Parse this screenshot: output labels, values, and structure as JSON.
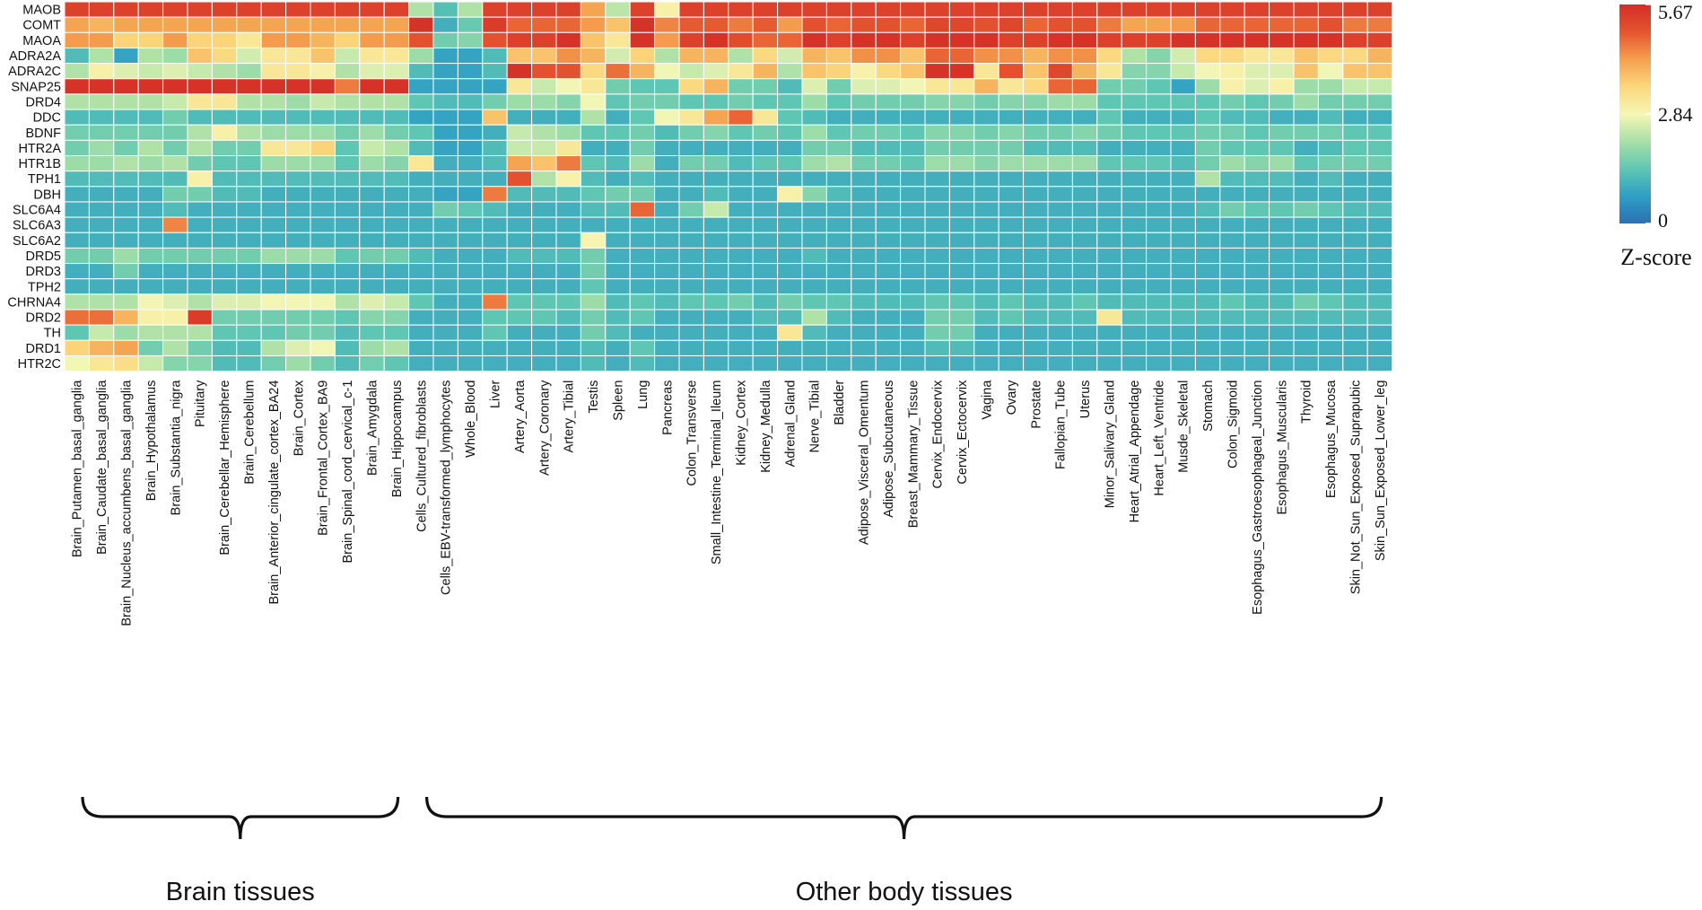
{
  "chart_data": {
    "type": "heatmap",
    "rows": [
      "MAOB",
      "COMT",
      "MAOA",
      "ADRA2A",
      "ADRA2C",
      "SNAP25",
      "DRD4",
      "DDC",
      "BDNF",
      "HTR2A",
      "HTR1B",
      "TPH1",
      "DBH",
      "SLC6A4",
      "SLC6A3",
      "SLC6A2",
      "DRD5",
      "DRD3",
      "TPH2",
      "CHRNA4",
      "DRD2",
      "TH",
      "DRD1",
      "HTR2C"
    ],
    "columns": [
      "Brain_Putamen_basal_ganglia",
      "Brain_Caudate_basal_ganglia",
      "Brain_Nucleus_accumbens_basal_ganglia",
      "Brain_Hypothalamus",
      "Brain_Substantia_nigra",
      "Pituitary",
      "Brain_Cerebellar_Hemisphere",
      "Brain_Cerebellum",
      "Brain_Anterior_cingulate_cortex_BA24",
      "Brain_Cortex",
      "Brain_Frontal_Cortex_BA9",
      "Brain_Spinal_cord_cervical_c-1",
      "Brain_Amygdala",
      "Brain_Hippocampus",
      "Cells_Cultured_fibroblasts",
      "Cells_EBV-transformed_lymphocytes",
      "Whole_Blood",
      "Liver",
      "Artery_Aorta",
      "Artery_Coronary",
      "Artery_Tibial",
      "Testis",
      "Spleen",
      "Lung",
      "Pancreas",
      "Colon_Transverse",
      "Small_Intestine_Terminal_Ileum",
      "Kidney_Cortex",
      "Kidney_Medulla",
      "Adrenal_Gland",
      "Nerve_Tibial",
      "Bladder",
      "Adipose_Visceral_Omentum",
      "Adipose_Subcutaneous",
      "Breast_Mammary_Tissue",
      "Cervix_Endocervix",
      "Cervix_Ectocervix",
      "Vagina",
      "Ovary",
      "Prostate",
      "Fallopian_Tube",
      "Uterus",
      "Minor_Salivary_Gland",
      "Heart_Atrial_Appendage",
      "Heart_Left_Ventride",
      "Musde_Skeletal",
      "Stomach",
      "Colon_Sigmoid",
      "Esophagus_Gastroesophageal_Junction",
      "Esophagus_Muscularis",
      "Thyroid",
      "Esophagus_Mucosa",
      "Skin_Not_Sun_Exposed_Suprapubic",
      "Skin_Sun_Exposed_Lower_leg"
    ],
    "values": [
      [
        5.3,
        5.3,
        5.3,
        5.3,
        5.3,
        5.3,
        5.3,
        5.3,
        5.3,
        5.3,
        5.3,
        5.3,
        5.3,
        5.3,
        2.2,
        1.3,
        2.2,
        5.3,
        5.3,
        5.3,
        5.3,
        4.2,
        2.3,
        5.3,
        3.0,
        5.3,
        5.3,
        5.3,
        5.3,
        5.3,
        5.3,
        5.3,
        5.3,
        5.3,
        5.3,
        5.3,
        5.3,
        5.3,
        5.3,
        5.3,
        5.3,
        5.3,
        5.3,
        5.3,
        5.3,
        5.3,
        5.3,
        5.3,
        5.3,
        5.3,
        5.3,
        5.3,
        5.3,
        5.3
      ],
      [
        4.2,
        4.0,
        4.2,
        4.2,
        4.2,
        4.2,
        4.2,
        4.2,
        4.2,
        4.2,
        4.2,
        4.2,
        4.2,
        4.2,
        5.6,
        1.0,
        1.5,
        5.4,
        4.8,
        4.8,
        4.8,
        4.3,
        3.8,
        5.6,
        4.5,
        4.9,
        4.9,
        4.6,
        4.9,
        4.3,
        5.0,
        4.8,
        5.0,
        5.0,
        4.8,
        5.2,
        5.2,
        5.0,
        5.2,
        4.8,
        5.0,
        5.0,
        4.6,
        4.2,
        4.2,
        4.3,
        4.8,
        4.8,
        4.8,
        4.8,
        4.8,
        5.0,
        4.6,
        4.6
      ],
      [
        4.3,
        4.3,
        3.6,
        3.6,
        4.3,
        3.6,
        3.6,
        3.2,
        4.3,
        4.3,
        4.0,
        3.6,
        4.3,
        4.3,
        5.0,
        1.6,
        1.8,
        5.0,
        5.3,
        5.3,
        5.6,
        3.8,
        3.2,
        5.6,
        4.3,
        5.3,
        5.6,
        5.1,
        4.8,
        4.8,
        5.6,
        5.3,
        5.6,
        5.6,
        5.3,
        5.6,
        5.6,
        5.6,
        5.3,
        5.3,
        5.6,
        5.6,
        5.3,
        5.3,
        5.3,
        5.6,
        5.6,
        5.6,
        5.6,
        5.6,
        5.6,
        5.6,
        5.3,
        5.3
      ],
      [
        1.2,
        2.2,
        0.8,
        2.2,
        2.0,
        3.8,
        3.5,
        2.5,
        3.2,
        3.2,
        3.8,
        2.4,
        3.2,
        3.2,
        2.0,
        0.8,
        0.8,
        1.2,
        3.8,
        3.8,
        4.4,
        4.0,
        2.5,
        3.6,
        2.2,
        4.0,
        4.0,
        2.2,
        3.5,
        2.5,
        4.0,
        3.8,
        4.4,
        4.4,
        3.8,
        4.8,
        4.8,
        4.4,
        4.4,
        4.0,
        4.4,
        4.4,
        3.5,
        2.2,
        1.8,
        2.5,
        3.5,
        3.5,
        3.2,
        3.2,
        3.8,
        3.5,
        3.5,
        4.0
      ],
      [
        2.2,
        3.0,
        2.6,
        2.4,
        2.6,
        2.4,
        2.2,
        2.0,
        3.2,
        3.2,
        3.0,
        2.2,
        2.6,
        2.6,
        1.2,
        0.8,
        0.8,
        1.2,
        5.6,
        5.0,
        5.0,
        3.5,
        4.7,
        4.0,
        2.8,
        2.4,
        2.6,
        3.2,
        4.0,
        2.2,
        3.8,
        3.6,
        3.0,
        3.5,
        3.8,
        5.6,
        5.6,
        3.2,
        5.0,
        3.8,
        5.2,
        4.0,
        3.2,
        1.8,
        1.8,
        2.4,
        2.8,
        3.0,
        2.6,
        2.6,
        3.8,
        2.8,
        3.8,
        3.8
      ],
      [
        5.6,
        5.6,
        5.6,
        5.6,
        5.6,
        5.6,
        5.6,
        5.6,
        5.6,
        5.6,
        5.6,
        4.6,
        5.6,
        5.6,
        0.8,
        0.8,
        0.8,
        0.8,
        3.2,
        2.4,
        2.8,
        3.2,
        1.6,
        1.4,
        1.4,
        3.5,
        4.0,
        1.6,
        1.6,
        1.2,
        2.6,
        1.6,
        2.6,
        2.6,
        2.8,
        3.2,
        3.2,
        4.0,
        3.2,
        3.5,
        4.8,
        4.8,
        1.6,
        1.6,
        1.4,
        0.8,
        2.0,
        3.0,
        2.6,
        3.0,
        2.0,
        2.0,
        2.4,
        2.4
      ],
      [
        2.2,
        2.2,
        2.2,
        2.2,
        2.4,
        3.2,
        3.2,
        2.2,
        2.2,
        2.0,
        2.4,
        2.2,
        2.2,
        2.2,
        1.4,
        1.2,
        1.2,
        1.6,
        2.0,
        2.0,
        1.8,
        2.8,
        1.4,
        1.6,
        1.6,
        1.4,
        1.4,
        1.6,
        1.4,
        1.4,
        2.0,
        1.4,
        1.6,
        1.6,
        1.6,
        1.8,
        1.8,
        1.6,
        1.8,
        1.8,
        2.0,
        2.0,
        1.4,
        1.4,
        1.4,
        1.4,
        1.4,
        1.6,
        1.4,
        1.6,
        2.0,
        1.6,
        1.6,
        1.6
      ],
      [
        1.2,
        1.2,
        1.2,
        1.2,
        1.6,
        1.2,
        1.2,
        1.2,
        1.2,
        1.2,
        1.2,
        1.2,
        1.2,
        1.2,
        0.8,
        0.8,
        0.8,
        3.8,
        1.0,
        1.0,
        1.0,
        2.2,
        1.0,
        1.4,
        2.8,
        3.2,
        4.2,
        4.8,
        3.2,
        1.4,
        1.2,
        1.0,
        1.0,
        1.0,
        1.0,
        1.0,
        1.0,
        1.0,
        1.0,
        1.0,
        1.0,
        1.0,
        1.4,
        1.0,
        1.0,
        1.0,
        1.4,
        1.2,
        1.2,
        1.0,
        1.0,
        1.2,
        1.0,
        1.0
      ],
      [
        1.6,
        1.6,
        1.6,
        1.6,
        1.6,
        2.2,
        3.0,
        2.2,
        2.0,
        2.0,
        2.0,
        1.6,
        2.0,
        1.6,
        1.4,
        0.8,
        0.8,
        1.0,
        2.4,
        2.2,
        2.0,
        1.4,
        1.4,
        1.6,
        1.2,
        1.6,
        1.8,
        1.4,
        1.6,
        1.4,
        2.0,
        1.4,
        1.6,
        1.6,
        1.4,
        1.8,
        1.8,
        1.6,
        1.8,
        1.6,
        1.6,
        1.8,
        1.6,
        1.4,
        1.4,
        1.4,
        1.6,
        1.6,
        1.4,
        1.6,
        1.6,
        1.6,
        1.4,
        1.4
      ],
      [
        1.6,
        2.0,
        1.6,
        2.2,
        1.6,
        2.2,
        1.6,
        1.6,
        3.2,
        3.2,
        3.6,
        1.4,
        2.4,
        2.2,
        1.2,
        0.8,
        0.8,
        1.2,
        2.4,
        2.4,
        3.2,
        1.0,
        1.0,
        1.6,
        1.0,
        1.0,
        1.0,
        1.0,
        1.0,
        1.0,
        1.6,
        1.6,
        1.2,
        1.2,
        1.2,
        1.6,
        1.6,
        1.6,
        1.6,
        1.2,
        1.2,
        1.2,
        1.0,
        1.0,
        1.0,
        1.0,
        1.6,
        1.4,
        1.4,
        1.4,
        1.0,
        1.2,
        1.4,
        1.4
      ],
      [
        2.0,
        2.0,
        2.2,
        2.0,
        2.2,
        1.6,
        1.4,
        1.4,
        2.0,
        2.0,
        2.0,
        1.4,
        2.0,
        1.8,
        3.2,
        1.0,
        1.0,
        1.2,
        4.2,
        3.8,
        4.6,
        1.4,
        1.2,
        2.0,
        1.0,
        1.6,
        1.6,
        1.2,
        1.4,
        1.4,
        2.0,
        2.2,
        1.6,
        1.6,
        1.4,
        2.0,
        2.0,
        1.8,
        2.0,
        2.0,
        2.0,
        2.0,
        1.4,
        1.4,
        1.4,
        1.2,
        1.6,
        2.0,
        1.8,
        2.0,
        1.4,
        1.6,
        1.6,
        1.6
      ],
      [
        1.2,
        1.2,
        1.2,
        1.2,
        1.2,
        3.0,
        1.2,
        1.2,
        1.2,
        1.2,
        1.2,
        1.2,
        1.2,
        1.2,
        1.0,
        1.0,
        1.0,
        1.0,
        5.0,
        2.2,
        3.0,
        1.2,
        1.0,
        1.2,
        1.0,
        1.0,
        1.0,
        1.0,
        1.0,
        1.0,
        1.0,
        1.0,
        1.0,
        1.0,
        1.0,
        1.0,
        1.0,
        1.0,
        1.0,
        1.0,
        1.0,
        1.0,
        1.0,
        1.0,
        1.0,
        1.0,
        2.2,
        1.2,
        1.2,
        1.2,
        1.0,
        1.2,
        1.0,
        1.0
      ],
      [
        1.0,
        1.0,
        1.0,
        1.0,
        1.6,
        1.6,
        1.2,
        1.2,
        1.0,
        1.0,
        1.0,
        1.0,
        1.0,
        1.0,
        1.0,
        0.8,
        0.8,
        4.6,
        1.2,
        1.2,
        1.2,
        1.4,
        1.6,
        1.6,
        1.0,
        1.0,
        1.2,
        1.0,
        1.0,
        3.0,
        1.8,
        1.2,
        1.0,
        1.0,
        1.0,
        1.0,
        1.0,
        1.0,
        1.0,
        1.0,
        1.0,
        1.0,
        1.0,
        1.0,
        1.0,
        1.0,
        1.0,
        1.0,
        1.0,
        1.0,
        1.0,
        1.0,
        1.0,
        1.0
      ],
      [
        1.0,
        1.0,
        1.0,
        1.0,
        1.2,
        1.0,
        1.0,
        1.0,
        1.0,
        1.0,
        1.0,
        1.0,
        1.0,
        1.0,
        1.0,
        1.6,
        1.4,
        1.2,
        1.0,
        1.0,
        1.0,
        1.2,
        1.2,
        4.8,
        1.0,
        1.6,
        2.4,
        1.0,
        1.0,
        1.0,
        1.0,
        1.0,
        1.0,
        1.0,
        1.0,
        1.0,
        1.0,
        1.0,
        1.0,
        1.0,
        1.0,
        1.0,
        1.0,
        1.0,
        1.0,
        1.0,
        1.2,
        1.6,
        1.4,
        1.4,
        1.6,
        1.4,
        1.2,
        1.2
      ],
      [
        1.0,
        1.0,
        1.0,
        1.0,
        4.5,
        1.0,
        1.0,
        1.0,
        1.0,
        1.0,
        1.0,
        1.0,
        1.0,
        1.0,
        1.0,
        1.0,
        1.0,
        1.0,
        1.0,
        1.0,
        1.0,
        1.0,
        1.0,
        1.0,
        1.0,
        1.0,
        1.0,
        1.0,
        1.0,
        1.0,
        1.0,
        1.0,
        1.0,
        1.0,
        1.0,
        1.0,
        1.0,
        1.0,
        1.0,
        1.0,
        1.0,
        1.0,
        1.0,
        1.0,
        1.0,
        1.0,
        1.0,
        1.0,
        1.0,
        1.0,
        1.0,
        1.0,
        1.0,
        1.0
      ],
      [
        1.0,
        1.0,
        1.0,
        1.0,
        1.0,
        1.0,
        1.0,
        1.0,
        1.0,
        1.0,
        1.0,
        1.0,
        1.0,
        1.0,
        1.0,
        1.0,
        1.0,
        1.0,
        1.0,
        1.0,
        1.0,
        2.9,
        1.0,
        1.0,
        1.0,
        1.0,
        1.0,
        1.0,
        1.0,
        1.0,
        1.0,
        1.0,
        1.0,
        1.0,
        1.0,
        1.0,
        1.0,
        1.0,
        1.0,
        1.0,
        1.0,
        1.0,
        1.0,
        1.0,
        1.0,
        1.0,
        1.0,
        1.0,
        1.0,
        1.0,
        1.0,
        1.0,
        1.0,
        1.0
      ],
      [
        1.6,
        1.6,
        2.0,
        1.6,
        1.6,
        1.6,
        1.6,
        1.6,
        2.0,
        2.0,
        2.0,
        1.4,
        1.6,
        1.6,
        1.2,
        1.0,
        1.0,
        1.0,
        1.2,
        1.2,
        1.2,
        1.6,
        1.0,
        1.0,
        1.0,
        1.0,
        1.0,
        1.0,
        1.0,
        1.0,
        1.2,
        1.0,
        1.0,
        1.0,
        1.0,
        1.0,
        1.0,
        1.0,
        1.0,
        1.0,
        1.0,
        1.0,
        1.0,
        1.0,
        1.0,
        1.0,
        1.0,
        1.0,
        1.0,
        1.0,
        1.0,
        1.0,
        1.0,
        1.0
      ],
      [
        1.0,
        1.0,
        1.6,
        1.0,
        1.0,
        1.0,
        1.0,
        1.0,
        1.0,
        1.0,
        1.0,
        1.0,
        1.0,
        1.0,
        1.0,
        1.0,
        1.0,
        1.0,
        1.0,
        1.0,
        1.0,
        1.6,
        1.0,
        1.0,
        1.0,
        1.0,
        1.0,
        1.0,
        1.0,
        1.0,
        1.0,
        1.0,
        1.0,
        1.0,
        1.0,
        1.0,
        1.0,
        1.0,
        1.0,
        1.0,
        1.0,
        1.0,
        1.0,
        1.0,
        1.0,
        1.0,
        1.0,
        1.0,
        1.0,
        1.0,
        1.0,
        1.0,
        1.0,
        1.0
      ],
      [
        1.0,
        1.0,
        1.0,
        1.0,
        1.0,
        1.0,
        1.0,
        1.0,
        1.0,
        1.0,
        1.0,
        1.0,
        1.0,
        1.0,
        1.0,
        1.0,
        1.0,
        1.0,
        1.0,
        1.0,
        1.0,
        1.4,
        1.0,
        1.0,
        1.0,
        1.0,
        1.0,
        1.0,
        1.0,
        1.0,
        1.0,
        1.0,
        1.0,
        1.0,
        1.0,
        1.0,
        1.0,
        1.0,
        1.0,
        1.0,
        1.0,
        1.0,
        1.0,
        1.0,
        1.0,
        1.0,
        1.0,
        1.0,
        1.0,
        1.0,
        1.0,
        1.0,
        1.0,
        1.0
      ],
      [
        2.2,
        2.2,
        2.2,
        2.8,
        2.6,
        2.2,
        2.6,
        2.6,
        2.8,
        2.8,
        2.8,
        2.2,
        2.6,
        2.4,
        1.4,
        1.0,
        1.0,
        4.6,
        1.4,
        1.4,
        1.4,
        2.0,
        1.2,
        1.4,
        1.2,
        1.4,
        1.4,
        1.6,
        1.2,
        1.6,
        1.4,
        1.4,
        1.2,
        1.2,
        1.2,
        1.4,
        1.4,
        1.2,
        1.4,
        1.2,
        1.2,
        1.4,
        1.2,
        1.2,
        1.2,
        1.2,
        1.2,
        1.4,
        1.2,
        1.2,
        1.6,
        1.4,
        1.2,
        1.2
      ],
      [
        4.7,
        4.7,
        4.0,
        3.0,
        3.0,
        5.4,
        1.6,
        1.6,
        1.6,
        1.6,
        1.6,
        1.4,
        1.8,
        1.8,
        1.0,
        1.0,
        1.0,
        1.4,
        1.4,
        1.4,
        1.2,
        1.6,
        1.2,
        1.4,
        1.0,
        1.0,
        1.0,
        1.0,
        1.2,
        1.2,
        2.2,
        1.2,
        1.0,
        1.0,
        1.0,
        1.6,
        1.6,
        1.2,
        1.4,
        1.2,
        1.2,
        1.2,
        3.2,
        1.2,
        1.2,
        1.2,
        1.2,
        1.2,
        1.2,
        1.2,
        1.2,
        1.2,
        1.2,
        1.2
      ],
      [
        1.4,
        2.4,
        2.0,
        2.2,
        2.2,
        2.2,
        1.4,
        1.4,
        1.4,
        1.6,
        1.6,
        1.2,
        1.4,
        1.4,
        1.0,
        1.0,
        1.0,
        1.4,
        1.0,
        1.0,
        1.0,
        1.6,
        1.2,
        1.0,
        1.0,
        1.0,
        1.0,
        1.0,
        1.0,
        3.2,
        1.2,
        1.0,
        1.0,
        1.0,
        1.0,
        1.6,
        1.6,
        1.0,
        1.0,
        1.0,
        1.0,
        1.0,
        1.0,
        1.0,
        1.0,
        1.0,
        1.0,
        1.0,
        1.0,
        1.0,
        1.0,
        1.0,
        1.0,
        1.0
      ],
      [
        3.6,
        4.0,
        4.2,
        1.6,
        2.2,
        1.6,
        1.2,
        1.2,
        2.2,
        2.6,
        2.8,
        1.2,
        2.0,
        2.2,
        1.0,
        1.0,
        1.0,
        1.0,
        1.0,
        1.0,
        1.0,
        1.2,
        1.0,
        1.4,
        1.0,
        1.0,
        1.0,
        1.0,
        1.0,
        1.0,
        1.0,
        1.0,
        1.0,
        1.0,
        1.0,
        1.2,
        1.2,
        1.0,
        1.0,
        1.0,
        1.0,
        1.0,
        1.0,
        1.0,
        1.0,
        1.0,
        1.0,
        1.0,
        1.0,
        1.0,
        1.0,
        1.0,
        1.0,
        1.0
      ],
      [
        2.8,
        3.2,
        3.4,
        2.4,
        1.8,
        1.8,
        1.2,
        1.2,
        1.6,
        2.0,
        1.6,
        1.2,
        1.6,
        1.4,
        1.0,
        1.0,
        1.0,
        1.0,
        1.0,
        1.0,
        1.0,
        1.2,
        1.0,
        1.2,
        1.0,
        1.0,
        1.0,
        1.0,
        1.0,
        1.0,
        1.0,
        1.0,
        1.0,
        1.0,
        1.0,
        1.0,
        1.0,
        1.0,
        1.0,
        1.0,
        1.0,
        1.0,
        1.0,
        1.0,
        1.0,
        1.0,
        1.0,
        1.0,
        1.0,
        1.0,
        1.0,
        1.0,
        1.0,
        1.0
      ]
    ],
    "colorbar": {
      "title": "Z-score",
      "ticks": [
        "5.67",
        "2.84",
        "0"
      ],
      "min": 0,
      "max": 5.67,
      "stops": [
        "#2b6fb3",
        "#2f9fc6",
        "#5fc7b1",
        "#a8e0a7",
        "#f6f7b5",
        "#fbd77c",
        "#f5a04f",
        "#e5532f",
        "#d32e27"
      ]
    },
    "groups": [
      {
        "label": "Brain tissues",
        "first_column": 0,
        "last_column": 13
      },
      {
        "label": "Other body tissues",
        "first_column": 14,
        "last_column": 53
      }
    ]
  }
}
